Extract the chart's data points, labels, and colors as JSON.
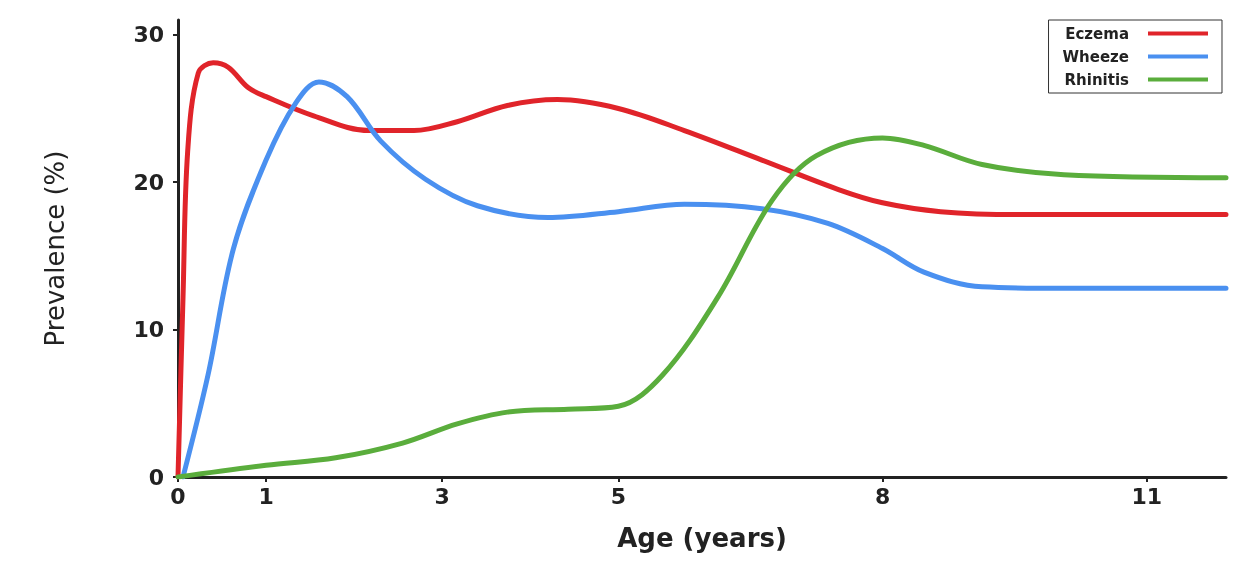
{
  "chart_data": {
    "type": "line",
    "xlabel": "Age (years)",
    "ylabel": "Prevalence (%)",
    "xlim": [
      0,
      11.9
    ],
    "ylim": [
      0,
      31
    ],
    "xticks": [
      0,
      1,
      3,
      5,
      8,
      11
    ],
    "yticks": [
      0,
      10,
      20,
      30
    ],
    "grid": false,
    "legend": "top right",
    "marker": "none",
    "line_style": "solid",
    "series": [
      {
        "name": "Eczema",
        "color": "#e0242a",
        "x": [
          0,
          0.057,
          0.11,
          0.23,
          0.4,
          0.57,
          0.8,
          1,
          1.54,
          2.17,
          2.68,
          3.17,
          3.74,
          4.31,
          5,
          5.75,
          6.63,
          7.5,
          8,
          8.66,
          9.59,
          11.9
        ],
        "values": [
          0,
          12.2,
          22.1,
          27.4,
          28.1,
          27.8,
          26.4,
          25.8,
          24.5,
          23.5,
          23.5,
          24.1,
          25.2,
          25.6,
          25,
          23.5,
          21.5,
          19.5,
          18.6,
          18,
          17.8,
          17.8
        ]
      },
      {
        "name": "Wheeze",
        "color": "#4a90f0",
        "x": [
          0.057,
          0.34,
          0.63,
          1,
          1.34,
          1.6,
          1.92,
          2.3,
          2.81,
          3.4,
          4.2,
          5,
          5.75,
          6.63,
          7.38,
          8,
          8.47,
          9.13,
          10.06,
          11.9
        ],
        "values": [
          0,
          6.9,
          15.5,
          21.5,
          25.4,
          26.8,
          25.8,
          22.8,
          20.2,
          18.4,
          17.6,
          18,
          18.5,
          18.2,
          17.2,
          15.5,
          13.9,
          12.9,
          12.8,
          12.8
        ]
      },
      {
        "name": "Rhinitis",
        "color": "#5aad3c",
        "x": [
          0,
          1,
          1.79,
          2.55,
          3.17,
          3.74,
          4.43,
          5,
          5.5,
          6.13,
          6.75,
          7.25,
          8,
          8.47,
          9.13,
          10.06,
          11.9
        ],
        "values": [
          0,
          0.8,
          1.3,
          2.3,
          3.6,
          4.4,
          4.6,
          4.8,
          6.9,
          12.2,
          18.8,
          21.8,
          23,
          22.5,
          21.2,
          20.5,
          20.3
        ]
      }
    ]
  }
}
